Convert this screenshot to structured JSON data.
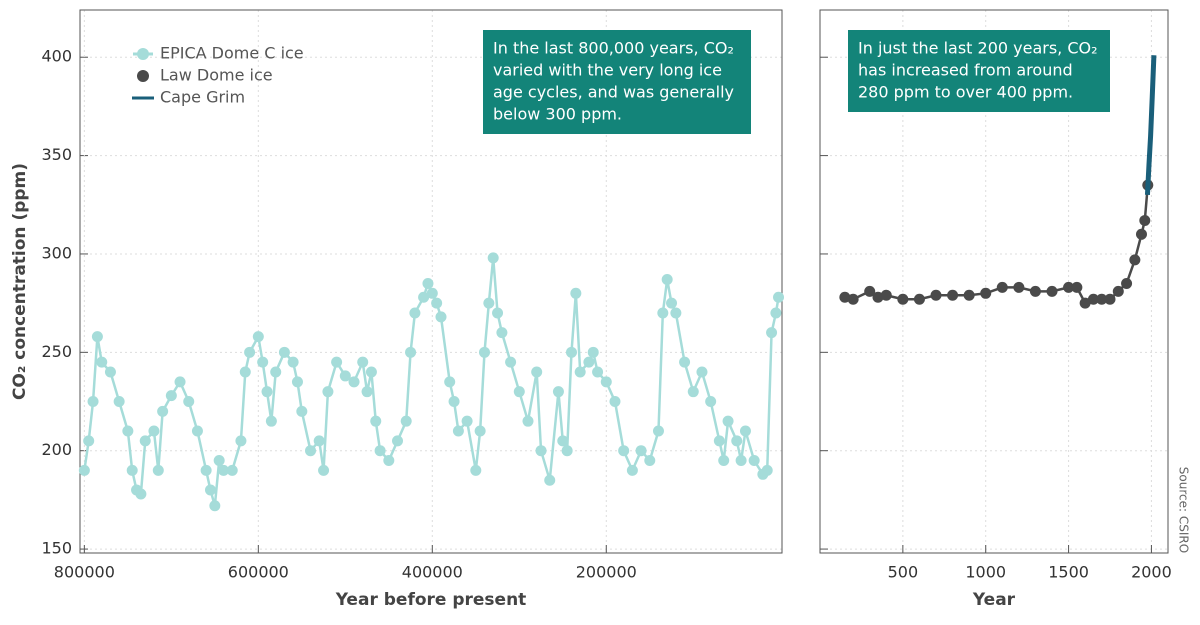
{
  "chart_data": [
    {
      "type": "scatter",
      "xlabel": "Year before present",
      "ylabel": "CO₂ concentration (ppm)",
      "xlim": [
        805000,
        -2000
      ],
      "ylim": [
        148,
        424
      ],
      "xticks": [
        800000,
        600000,
        400000,
        200000
      ],
      "yticks": [
        150,
        200,
        250,
        300,
        350,
        400
      ],
      "grid": true,
      "annotation": [
        "In the last 800,000 years, CO₂",
        "varied with the very long ice",
        "age cycles, and was generally",
        "below 300 ppm."
      ],
      "series": [
        {
          "name": "EPICA Dome C ice",
          "color": "#a5dcd9",
          "x": [
            800000,
            795000,
            790000,
            785000,
            780000,
            770000,
            760000,
            750000,
            745000,
            740000,
            735000,
            730000,
            720000,
            715000,
            710000,
            700000,
            690000,
            680000,
            670000,
            660000,
            655000,
            650000,
            645000,
            640000,
            630000,
            620000,
            615000,
            610000,
            600000,
            595000,
            590000,
            585000,
            580000,
            570000,
            560000,
            555000,
            550000,
            540000,
            530000,
            525000,
            520000,
            510000,
            500000,
            490000,
            480000,
            475000,
            470000,
            465000,
            460000,
            450000,
            440000,
            430000,
            425000,
            420000,
            410000,
            405000,
            400000,
            395000,
            390000,
            380000,
            375000,
            370000,
            360000,
            350000,
            345000,
            340000,
            335000,
            330000,
            325000,
            320000,
            310000,
            300000,
            290000,
            280000,
            275000,
            265000,
            255000,
            250000,
            245000,
            240000,
            235000,
            230000,
            220000,
            215000,
            210000,
            200000,
            190000,
            180000,
            170000,
            160000,
            150000,
            140000,
            135000,
            130000,
            125000,
            120000,
            110000,
            100000,
            90000,
            80000,
            70000,
            65000,
            60000,
            50000,
            45000,
            40000,
            30000,
            20000,
            15000,
            10000,
            5000,
            2000
          ],
          "values": [
            190,
            205,
            225,
            258,
            245,
            240,
            225,
            210,
            190,
            180,
            178,
            205,
            210,
            190,
            220,
            228,
            235,
            225,
            210,
            190,
            180,
            172,
            195,
            190,
            190,
            205,
            240,
            250,
            258,
            245,
            230,
            215,
            240,
            250,
            245,
            235,
            220,
            200,
            205,
            190,
            230,
            245,
            238,
            235,
            245,
            230,
            240,
            215,
            200,
            195,
            205,
            215,
            250,
            270,
            278,
            285,
            280,
            275,
            268,
            235,
            225,
            210,
            215,
            190,
            210,
            250,
            275,
            298,
            270,
            260,
            245,
            230,
            215,
            240,
            200,
            185,
            230,
            205,
            200,
            250,
            280,
            240,
            245,
            250,
            240,
            235,
            225,
            200,
            190,
            200,
            195,
            210,
            270,
            287,
            275,
            270,
            245,
            230,
            240,
            225,
            205,
            195,
            215,
            205,
            195,
            210,
            195,
            188,
            190,
            260,
            270,
            278
          ]
        }
      ]
    },
    {
      "type": "scatter",
      "xlabel": "Year",
      "xlim": [
        0,
        2100
      ],
      "ylim": [
        148,
        424
      ],
      "xticks": [
        500,
        1000,
        1500,
        2000
      ],
      "yticks": [
        150,
        200,
        250,
        300,
        350,
        400
      ],
      "grid": true,
      "annotation": [
        "In just the last 200 years, CO₂",
        "has increased from around",
        "280 ppm to over 400 ppm."
      ],
      "series": [
        {
          "name": "Law Dome ice",
          "color": "#4a4a4a",
          "x": [
            150,
            200,
            300,
            350,
            400,
            500,
            600,
            700,
            800,
            900,
            1000,
            1100,
            1200,
            1300,
            1400,
            1500,
            1550,
            1600,
            1650,
            1700,
            1750,
            1800,
            1850,
            1900,
            1940,
            1960,
            1978
          ],
          "values": [
            278,
            277,
            281,
            278,
            279,
            277,
            277,
            279,
            279,
            279,
            280,
            283,
            283,
            281,
            281,
            283,
            283,
            275,
            277,
            277,
            277,
            281,
            285,
            297,
            310,
            317,
            335
          ]
        },
        {
          "name": "Cape Grim",
          "color": "#1a5f7a",
          "line": true,
          "x": [
            1976,
            1985,
            1995,
            2005,
            2015
          ],
          "values": [
            330,
            345,
            360,
            380,
            401
          ]
        }
      ]
    }
  ],
  "source": "Source: CSIRO"
}
